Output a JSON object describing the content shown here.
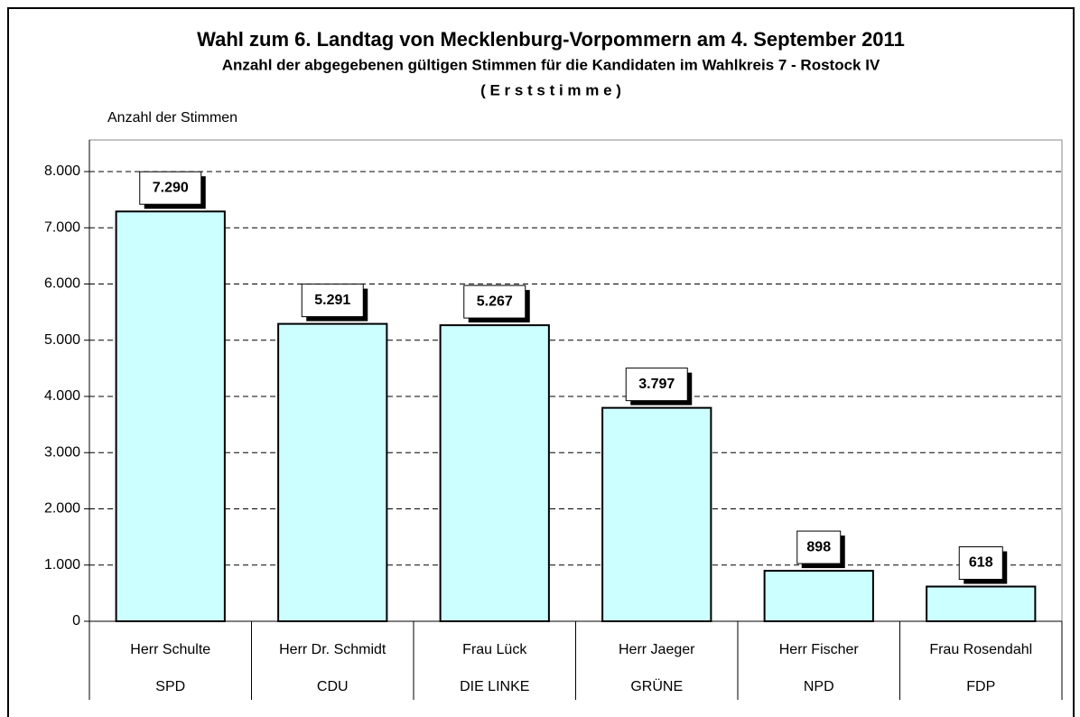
{
  "chart_data": {
    "type": "bar",
    "title": "Wahl zum 6. Landtag von Mecklenburg-Vorpommern am 4. September 2011",
    "subtitle": "Anzahl der abgegebenen gültigen Stimmen für die Kandidaten im Wahlkreis 7 - Rostock IV",
    "subtitle2": "( E r s t s t i m m e )",
    "y_label": "Anzahl der Stimmen",
    "categories": [
      "Herr Schulte",
      "Herr Dr. Schmidt",
      "Frau Lück",
      "Herr Jaeger",
      "Herr Fischer",
      "Frau Rosendahl"
    ],
    "parties": [
      "SPD",
      "CDU",
      "DIE LINKE",
      "GRÜNE",
      "NPD",
      "FDP"
    ],
    "values": [
      7290,
      5291,
      5267,
      3797,
      898,
      618
    ],
    "value_labels": [
      "7.290",
      "5.291",
      "5.267",
      "3.797",
      "898",
      "618"
    ],
    "color": "#ccffff",
    "ylim": [
      0,
      8000
    ],
    "yticks": [
      0,
      {
        "value": 1000,
        "label": "1.000"
      },
      {
        "value": 2000,
        "label": "2.000"
      },
      {
        "value": 3000,
        "label": "3.000"
      },
      {
        "value": 4000,
        "label": "4.000"
      },
      {
        "value": 5000,
        "label": "5.000"
      },
      {
        "value": 6000,
        "label": "6.000"
      },
      {
        "value": 7000,
        "label": "7.000"
      },
      {
        "value": 8000,
        "label": "8.000"
      }
    ],
    "grid": true
  }
}
